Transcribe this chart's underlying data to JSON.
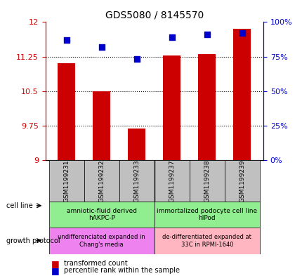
{
  "title": "GDS5080 / 8145570",
  "samples": [
    "GSM1199231",
    "GSM1199232",
    "GSM1199233",
    "GSM1199237",
    "GSM1199238",
    "GSM1199239"
  ],
  "bar_values": [
    11.1,
    10.5,
    9.68,
    11.27,
    11.3,
    11.85
  ],
  "dot_values": [
    87,
    82,
    73,
    89,
    91,
    92
  ],
  "ylim_left": [
    9,
    12
  ],
  "ylim_right": [
    0,
    100
  ],
  "yticks_left": [
    9,
    9.75,
    10.5,
    11.25,
    12
  ],
  "yticks_right": [
    0,
    25,
    50,
    75,
    100
  ],
  "ytick_labels_left": [
    "9",
    "9.75",
    "10.5",
    "11.25",
    "12"
  ],
  "ytick_labels_right": [
    "0%",
    "25%",
    "50%",
    "75%",
    "100%"
  ],
  "bar_color": "#cc0000",
  "dot_color": "#0000cc",
  "bar_width": 0.5,
  "cell_line_1": "amniotic-fluid derived\nhAKPC-P",
  "cell_line_2": "immortalized podocyte cell line\nhIPod",
  "growth_1": "undifferenciated expanded in\nChang's media",
  "growth_2": "de-differentiated expanded at\n33C in RPMI-1640",
  "cell_line_color": "#90ee90",
  "growth_color_1": "#ee82ee",
  "growth_color_2": "#ffb6c1",
  "left_axis_color": "#cc0000",
  "right_axis_color": "#0000cc",
  "legend_bar_label": "transformed count",
  "legend_dot_label": "percentile rank within the sample",
  "sample_box_color": "#c0c0c0"
}
